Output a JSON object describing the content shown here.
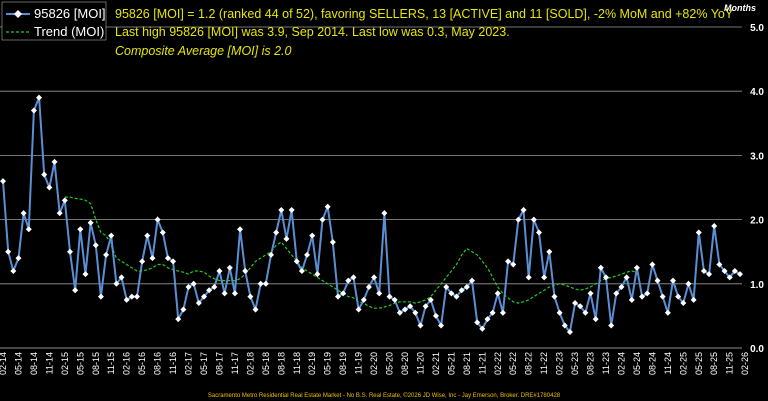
{
  "legend": {
    "series_label": "95826 [MOI]",
    "trend_label": "Trend (MOI)"
  },
  "header": {
    "line1": "95826 [MOI] = 1.2 (ranked 44 of 52), favoring SELLERS, 13 [ACTIVE] and 11 [SOLD], -2% MoM and +82% YoY",
    "line2": "Last high 95826 [MOI] was 3.9, Sep 2014. Last low was 0.3, May 2023.",
    "line3": "Composite Average [MOI] is 2.0"
  },
  "footer": "Sacramento Metro Residential Real Estate Market - No B.S. Real Estate, ©2026 JD Wise, Inc - Jay Emerson, Broker. DRE#1780428",
  "colors": {
    "background": "#000000",
    "series": "#5b8fd4",
    "markers": "#ffffff",
    "trend": "#22cc22",
    "header_text": "#e6e600",
    "gridline": "#9a9a9a"
  },
  "chart_data": {
    "type": "line",
    "title": "",
    "ylabel": "Months",
    "ylim": [
      0,
      5
    ],
    "yticks": [
      "0.0",
      "1.0",
      "2.0",
      "3.0",
      "4.0",
      "5.0"
    ],
    "grid": true,
    "legend_position": "top-left",
    "x_start": "2014-02",
    "x_tick_labels": [
      "02-14",
      "05-14",
      "08-14",
      "11-14",
      "02-15",
      "05-15",
      "08-15",
      "11-15",
      "02-16",
      "05-16",
      "08-16",
      "11-16",
      "02-17",
      "05-17",
      "08-17",
      "11-17",
      "02-18",
      "05-18",
      "08-18",
      "11-18",
      "02-19",
      "05-19",
      "08-19",
      "11-19",
      "02-20",
      "05-20",
      "08-20",
      "11-20",
      "02-21",
      "05-21",
      "08-21",
      "11-21",
      "02-22",
      "05-22",
      "08-22",
      "11-22",
      "02-23",
      "05-23",
      "08-23",
      "11-23",
      "02-24",
      "05-24",
      "08-24",
      "11-24",
      "02-25",
      "05-25",
      "08-25",
      "11-25",
      "02-26"
    ],
    "series": [
      {
        "name": "95826 [MOI]",
        "values": [
          2.6,
          1.5,
          1.2,
          1.4,
          2.1,
          1.85,
          3.7,
          3.9,
          2.7,
          2.5,
          2.9,
          2.1,
          2.3,
          1.5,
          0.9,
          1.85,
          1.15,
          1.95,
          1.6,
          0.8,
          1.45,
          1.75,
          1.0,
          1.1,
          0.75,
          0.8,
          0.8,
          1.35,
          1.75,
          1.4,
          2.0,
          1.8,
          1.4,
          1.35,
          0.45,
          0.6,
          0.95,
          1.0,
          0.7,
          0.8,
          0.9,
          0.95,
          1.2,
          0.85,
          1.25,
          0.85,
          1.85,
          1.2,
          0.8,
          0.6,
          1.0,
          1.0,
          1.45,
          1.8,
          2.15,
          1.7,
          2.15,
          1.35,
          1.2,
          1.45,
          1.75,
          1.15,
          2.0,
          2.2,
          1.65,
          0.8,
          0.85,
          1.05,
          1.1,
          0.6,
          0.75,
          0.95,
          1.1,
          0.85,
          2.1,
          0.8,
          0.75,
          0.55,
          0.6,
          0.65,
          0.55,
          0.35,
          0.65,
          0.75,
          0.5,
          0.35,
          0.95,
          0.85,
          0.8,
          0.9,
          0.95,
          1.05,
          0.4,
          0.3,
          0.45,
          0.55,
          0.85,
          0.55,
          1.35,
          1.3,
          2.0,
          2.15,
          1.1,
          2.0,
          1.8,
          1.1,
          1.5,
          0.8,
          0.55,
          0.35,
          0.25,
          0.7,
          0.65,
          0.55,
          0.85,
          0.45,
          1.25,
          1.1,
          0.35,
          0.85,
          0.95,
          1.1,
          0.75,
          1.25,
          0.8,
          0.85,
          1.3,
          1.05,
          0.8,
          0.55,
          1.05,
          0.8,
          0.7,
          1.0,
          0.75,
          1.8,
          1.2,
          1.15,
          1.9,
          1.3,
          1.2,
          1.1,
          1.2,
          1.15
        ]
      },
      {
        "name": "Trend (MOI)",
        "start_index": 12,
        "values": [
          2.35,
          2.35,
          2.33,
          2.32,
          2.3,
          2.25,
          2.0,
          1.8,
          1.75,
          1.6,
          1.4,
          1.35,
          1.3,
          1.25,
          1.2,
          1.2,
          1.22,
          1.25,
          1.3,
          1.3,
          1.25,
          1.22,
          1.2,
          1.18,
          1.15,
          1.2,
          1.2,
          1.18,
          1.12,
          1.08,
          1.05,
          1.05,
          1.05,
          1.05,
          1.08,
          1.15,
          1.25,
          1.35,
          1.4,
          1.45,
          1.5,
          1.6,
          1.65,
          1.55,
          1.45,
          1.35,
          1.25,
          1.2,
          1.15,
          1.1,
          1.05,
          1.0,
          0.95,
          0.9,
          0.85,
          0.8,
          0.78,
          0.72,
          0.7,
          0.65,
          0.62,
          0.62,
          0.64,
          0.66,
          0.7,
          0.72,
          0.72,
          0.72,
          0.7,
          0.72,
          0.75,
          0.8,
          0.9,
          1.0,
          1.1,
          1.2,
          1.3,
          1.45,
          1.55,
          1.5,
          1.45,
          1.35,
          1.25,
          1.1,
          0.95,
          0.85,
          0.78,
          0.72,
          0.7,
          0.72,
          0.75,
          0.8,
          0.85,
          0.9,
          0.95,
          0.98,
          1.0,
          0.98,
          0.95,
          0.92,
          0.9,
          0.92,
          0.95,
          1.0,
          1.05,
          1.08,
          1.1,
          1.12,
          1.15,
          1.18,
          1.2,
          1.18
        ]
      }
    ]
  }
}
